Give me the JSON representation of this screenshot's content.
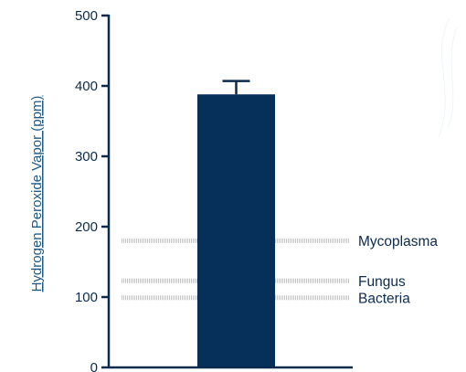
{
  "chart_data": {
    "type": "bar",
    "categories": [
      ""
    ],
    "values": [
      388
    ],
    "error": [
      19
    ],
    "ylabel": "Hydrogen Peroxide Vapor (ppm)",
    "xlabel": "",
    "ylim": [
      0,
      500
    ],
    "yticks": [
      0,
      100,
      200,
      300,
      400,
      500
    ],
    "grid": false,
    "reference_lines": [
      {
        "label": "Mycoplasma",
        "value": 180
      },
      {
        "label": "Fungus",
        "value": 123
      },
      {
        "label": "Bacteria",
        "value": 99
      }
    ],
    "colors": {
      "bar": "#06305a",
      "reference_line": "#a9cde2",
      "axis": "#0b2b4e",
      "ylabel": "#1f5a85"
    }
  }
}
